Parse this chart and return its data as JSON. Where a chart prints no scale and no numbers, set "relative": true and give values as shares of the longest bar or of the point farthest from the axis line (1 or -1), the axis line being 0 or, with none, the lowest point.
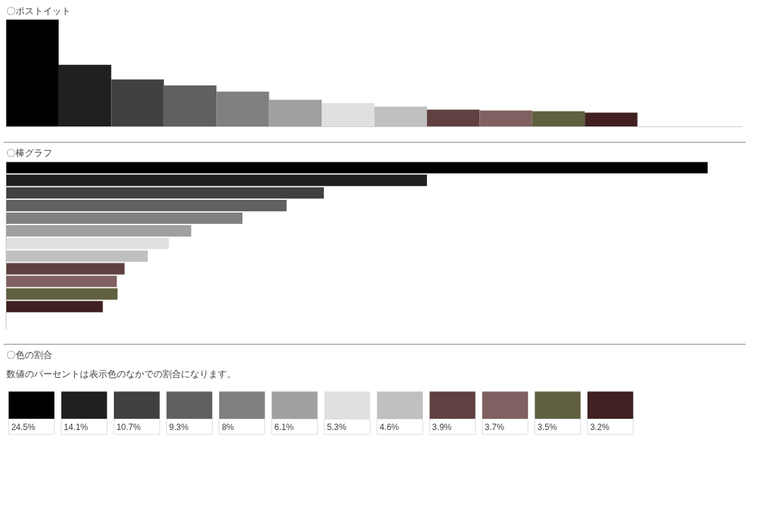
{
  "chart_data": [
    {
      "type": "bar",
      "title": "〇ポストイット",
      "relative": true,
      "categories": [
        null,
        null,
        null,
        null,
        null,
        null,
        null,
        null,
        null,
        null,
        null,
        null
      ],
      "values": [
        1,
        0.577,
        0.44,
        0.385,
        0.328,
        0.252,
        0.22,
        0.187,
        0.16,
        0.152,
        0.145,
        0.132
      ],
      "colors": [
        "#000000",
        "#202020",
        "#404040",
        "#606060",
        "#808080",
        "#a0a0a0",
        "#e0e0e0",
        "#c0c0c0",
        "#604040",
        "#806060",
        "#606040",
        "#402020"
      ]
    },
    {
      "type": "bar",
      "title": "〇棒グラフ",
      "relative": true,
      "orientation": "horizontal",
      "categories": [
        null,
        null,
        null,
        null,
        null,
        null,
        null,
        null,
        null,
        null,
        null,
        null
      ],
      "values": [
        1,
        0.6,
        0.453,
        0.4,
        0.337,
        0.264,
        0.232,
        0.202,
        0.169,
        0.158,
        0.159,
        0.138
      ],
      "colors": [
        "#000000",
        "#202020",
        "#404040",
        "#606060",
        "#808080",
        "#a0a0a0",
        "#e0e0e0",
        "#c0c0c0",
        "#604040",
        "#806060",
        "#606040",
        "#402020"
      ]
    },
    {
      "type": "other",
      "title": "〇色の割合",
      "subtitle": "数値のパーセントは表示色のなかでの割合になります。",
      "categories": [
        null,
        null,
        null,
        null,
        null,
        null,
        null,
        null,
        null,
        null,
        null,
        null
      ],
      "values": [
        24.5,
        14.1,
        10.7,
        9.3,
        8,
        6.1,
        5.3,
        4.6,
        3.9,
        3.7,
        3.5,
        3.2
      ],
      "value_labels": [
        "24.5%",
        "14.1%",
        "10.7%",
        "9.3%",
        "8%",
        "6.1%",
        "5.3%",
        "4.6%",
        "3.9%",
        "3.7%",
        "3.5%",
        "3.2%"
      ],
      "colors": [
        "#000000",
        "#202020",
        "#404040",
        "#606060",
        "#808080",
        "#a0a0a0",
        "#e0e0e0",
        "#c0c0c0",
        "#604040",
        "#806060",
        "#606040",
        "#402020"
      ]
    }
  ]
}
